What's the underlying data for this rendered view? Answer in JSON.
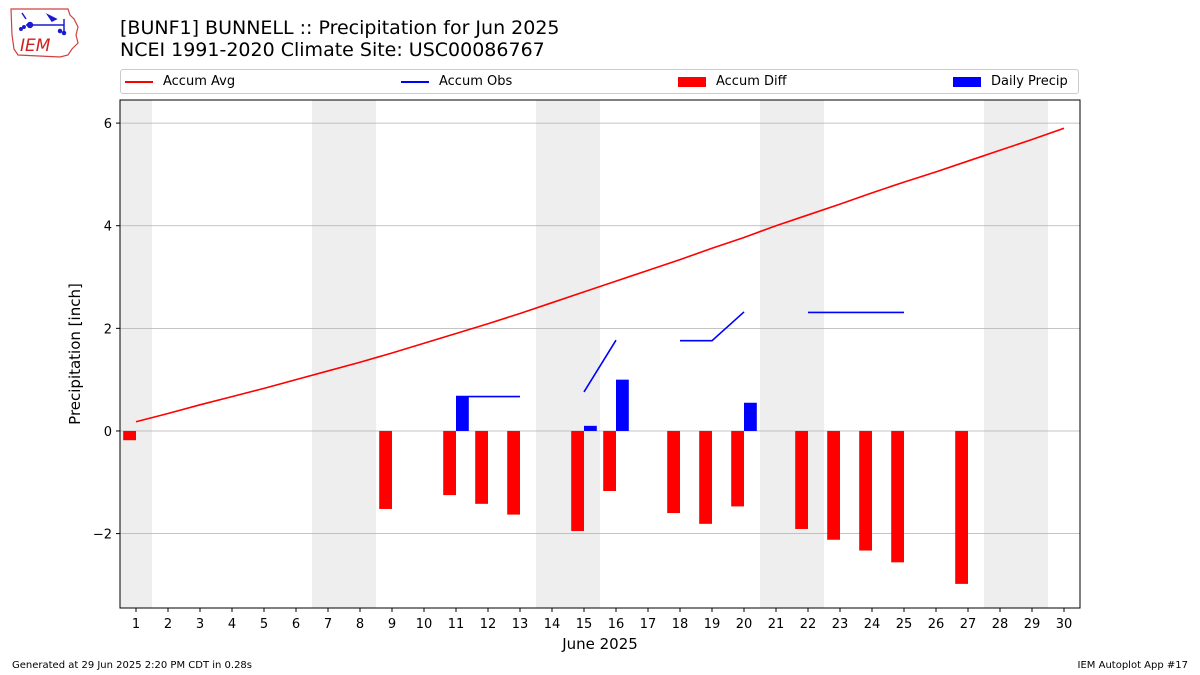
{
  "header": {
    "title_line1": "[BUNF1] BUNNELL :: Precipitation for Jun 2025",
    "title_line2": "NCEI 1991-2020 Climate Site: USC00086767"
  },
  "logo": {
    "text": "IEM"
  },
  "footer": {
    "generated": "Generated at 29 Jun 2025 2:20 PM CDT in 0.28s",
    "app": "IEM Autoplot App #17"
  },
  "colors": {
    "accum_avg": "#ff0000",
    "accum_obs": "#0000ff",
    "accum_diff": "#ff0000",
    "daily_precip": "#0000ff",
    "weekend_shade": "#eeeeee",
    "grid": "#b0b0b0"
  },
  "chart_data": {
    "type": "bar",
    "xlabel": "June 2025",
    "ylabel": "Precipitation [inch]",
    "ylim": [
      -3.45,
      6.45
    ],
    "xlim": [
      0.5,
      30.5
    ],
    "yticks": [
      -2,
      0,
      2,
      4,
      6
    ],
    "xticks": [
      1,
      2,
      3,
      4,
      5,
      6,
      7,
      8,
      9,
      10,
      11,
      12,
      13,
      14,
      15,
      16,
      17,
      18,
      19,
      20,
      21,
      22,
      23,
      24,
      25,
      26,
      27,
      28,
      29,
      30
    ],
    "grid": "horizontal",
    "legend_position": "top",
    "legend": [
      "Accum Avg",
      "Accum Obs",
      "Accum Diff",
      "Daily Precip"
    ],
    "weekend_days": [
      1,
      7,
      8,
      14,
      15,
      21,
      22,
      28,
      29
    ],
    "days": [
      1,
      2,
      3,
      4,
      5,
      6,
      7,
      8,
      9,
      10,
      11,
      12,
      13,
      14,
      15,
      16,
      17,
      18,
      19,
      20,
      21,
      22,
      23,
      24,
      25,
      26,
      27,
      28,
      29,
      30
    ],
    "series": [
      {
        "name": "Accum Avg",
        "type": "line",
        "values": [
          0.18,
          0.34,
          0.51,
          0.67,
          0.83,
          1.0,
          1.17,
          1.34,
          1.52,
          1.71,
          1.9,
          2.09,
          2.29,
          2.5,
          2.71,
          2.92,
          3.13,
          3.34,
          3.56,
          3.77,
          4.0,
          4.21,
          4.42,
          4.64,
          4.85,
          5.05,
          5.26,
          5.47,
          5.68,
          5.9
        ]
      },
      {
        "name": "Accum Obs",
        "type": "line",
        "values": [
          null,
          null,
          null,
          null,
          null,
          null,
          null,
          null,
          null,
          null,
          0.67,
          0.67,
          0.67,
          null,
          0.76,
          1.77,
          null,
          1.76,
          1.76,
          2.32,
          null,
          2.31,
          2.31,
          2.31,
          2.31,
          null,
          null,
          null,
          null,
          null
        ]
      },
      {
        "name": "Accum Diff",
        "type": "bar",
        "values": [
          -0.18,
          null,
          null,
          null,
          null,
          null,
          null,
          null,
          -1.52,
          null,
          -1.25,
          -1.42,
          -1.63,
          null,
          -1.95,
          -1.17,
          null,
          -1.6,
          -1.81,
          -1.47,
          null,
          -1.91,
          -2.12,
          -2.33,
          -2.56,
          null,
          -2.98,
          null,
          null,
          null
        ]
      },
      {
        "name": "Daily Precip",
        "type": "bar",
        "values": [
          null,
          null,
          null,
          null,
          null,
          null,
          null,
          null,
          null,
          null,
          0.67,
          null,
          null,
          null,
          0.1,
          1.0,
          null,
          null,
          null,
          0.55,
          null,
          null,
          null,
          null,
          null,
          null,
          null,
          null,
          null,
          null
        ]
      }
    ]
  }
}
